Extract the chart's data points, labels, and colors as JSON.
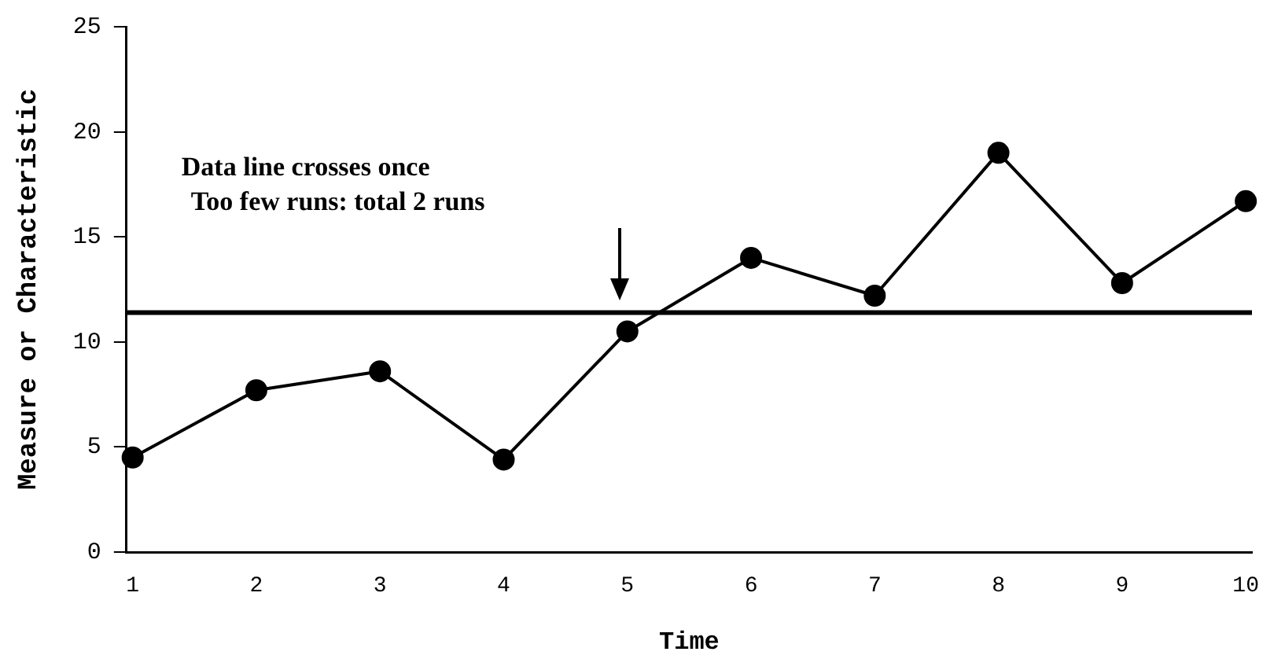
{
  "chart_data": {
    "type": "line",
    "xlabel": "Time",
    "ylabel": "Measure or Characteristic",
    "x": [
      1,
      2,
      3,
      4,
      5,
      6,
      7,
      8,
      9,
      10
    ],
    "series": [
      {
        "color": "#000000",
        "values": [
          4.5,
          7.7,
          8.6,
          4.4,
          10.5,
          14.0,
          12.2,
          19.0,
          12.8,
          16.7
        ]
      }
    ],
    "xlim": [
      0.95,
      10.05
    ],
    "xticks": [
      1,
      2,
      3,
      4,
      5,
      6,
      7,
      8,
      9,
      10
    ],
    "ylim": [
      0,
      25
    ],
    "yticks": [
      0,
      5,
      10,
      15,
      20,
      25
    ],
    "ref_lines": [
      {
        "axis": "y",
        "value": 11.4,
        "color": "#000000"
      }
    ],
    "annotations": [
      "Data line crosses once",
      "Too few runs: total 2 runs"
    ],
    "grid": false,
    "legend": false,
    "marker": "circle",
    "line_style": "solid"
  }
}
